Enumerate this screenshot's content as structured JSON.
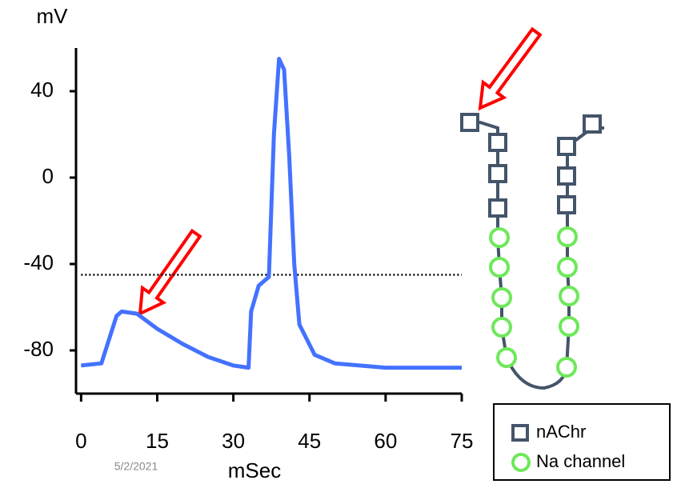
{
  "chart_data": {
    "type": "line",
    "ylabel": "mV",
    "xlabel": "mSec",
    "x": [
      0,
      4,
      7,
      8,
      11,
      15,
      20,
      25,
      30,
      33,
      33.5,
      35,
      37,
      38,
      39,
      40,
      41,
      42,
      43,
      46,
      50,
      60,
      75
    ],
    "values": [
      -87,
      -86,
      -64,
      -62,
      -63,
      -70,
      -77,
      -83,
      -87,
      -88,
      -62,
      -50,
      -46,
      20,
      55,
      50,
      10,
      -40,
      -68,
      -82,
      -86,
      -88,
      -88
    ],
    "color": "#4472ff",
    "threshold": -45,
    "xlim": [
      -1,
      75
    ],
    "xticks": [
      0,
      15,
      30,
      45,
      60,
      75
    ],
    "ylim": [
      -100,
      60
    ],
    "yticks": [
      40,
      0,
      -40,
      -80
    ]
  },
  "legend": {
    "items": [
      "nAChr",
      "Na channel"
    ]
  },
  "date": "5/2/2021"
}
